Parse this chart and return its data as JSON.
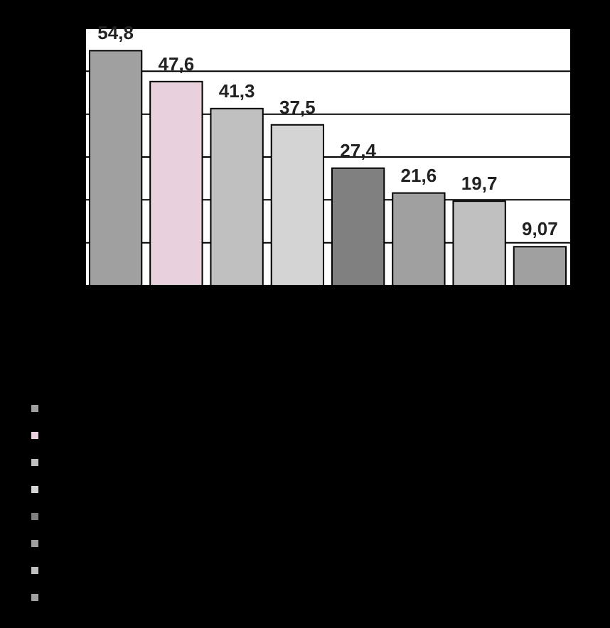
{
  "chart_data": {
    "type": "bar",
    "categories": [
      null,
      null,
      null,
      null,
      null,
      null,
      null,
      null
    ],
    "values": [
      54.8,
      47.6,
      41.3,
      37.5,
      27.4,
      21.6,
      19.7,
      9.07
    ],
    "value_labels": [
      "54,8",
      "47,6",
      "41,3",
      "37,5",
      "27,4",
      "21,6",
      "19,7",
      "9,07"
    ],
    "colors": [
      "#a0a0a0",
      "#e8d0dc",
      "#c0c0c0",
      "#d4d4d4",
      "#808080",
      "#a0a0a0",
      "#c0c0c0",
      "#a0a0a0"
    ],
    "ylim": [
      0,
      60
    ],
    "yticks": [
      {
        "value": 0,
        "label": null
      },
      {
        "value": 10,
        "label": null
      },
      {
        "value": 20,
        "label": null
      },
      {
        "value": 30,
        "label": null
      },
      {
        "value": 40,
        "label": null
      },
      {
        "value": 50,
        "label": null
      },
      {
        "value": 60,
        "label": null
      }
    ],
    "grid": "y"
  }
}
